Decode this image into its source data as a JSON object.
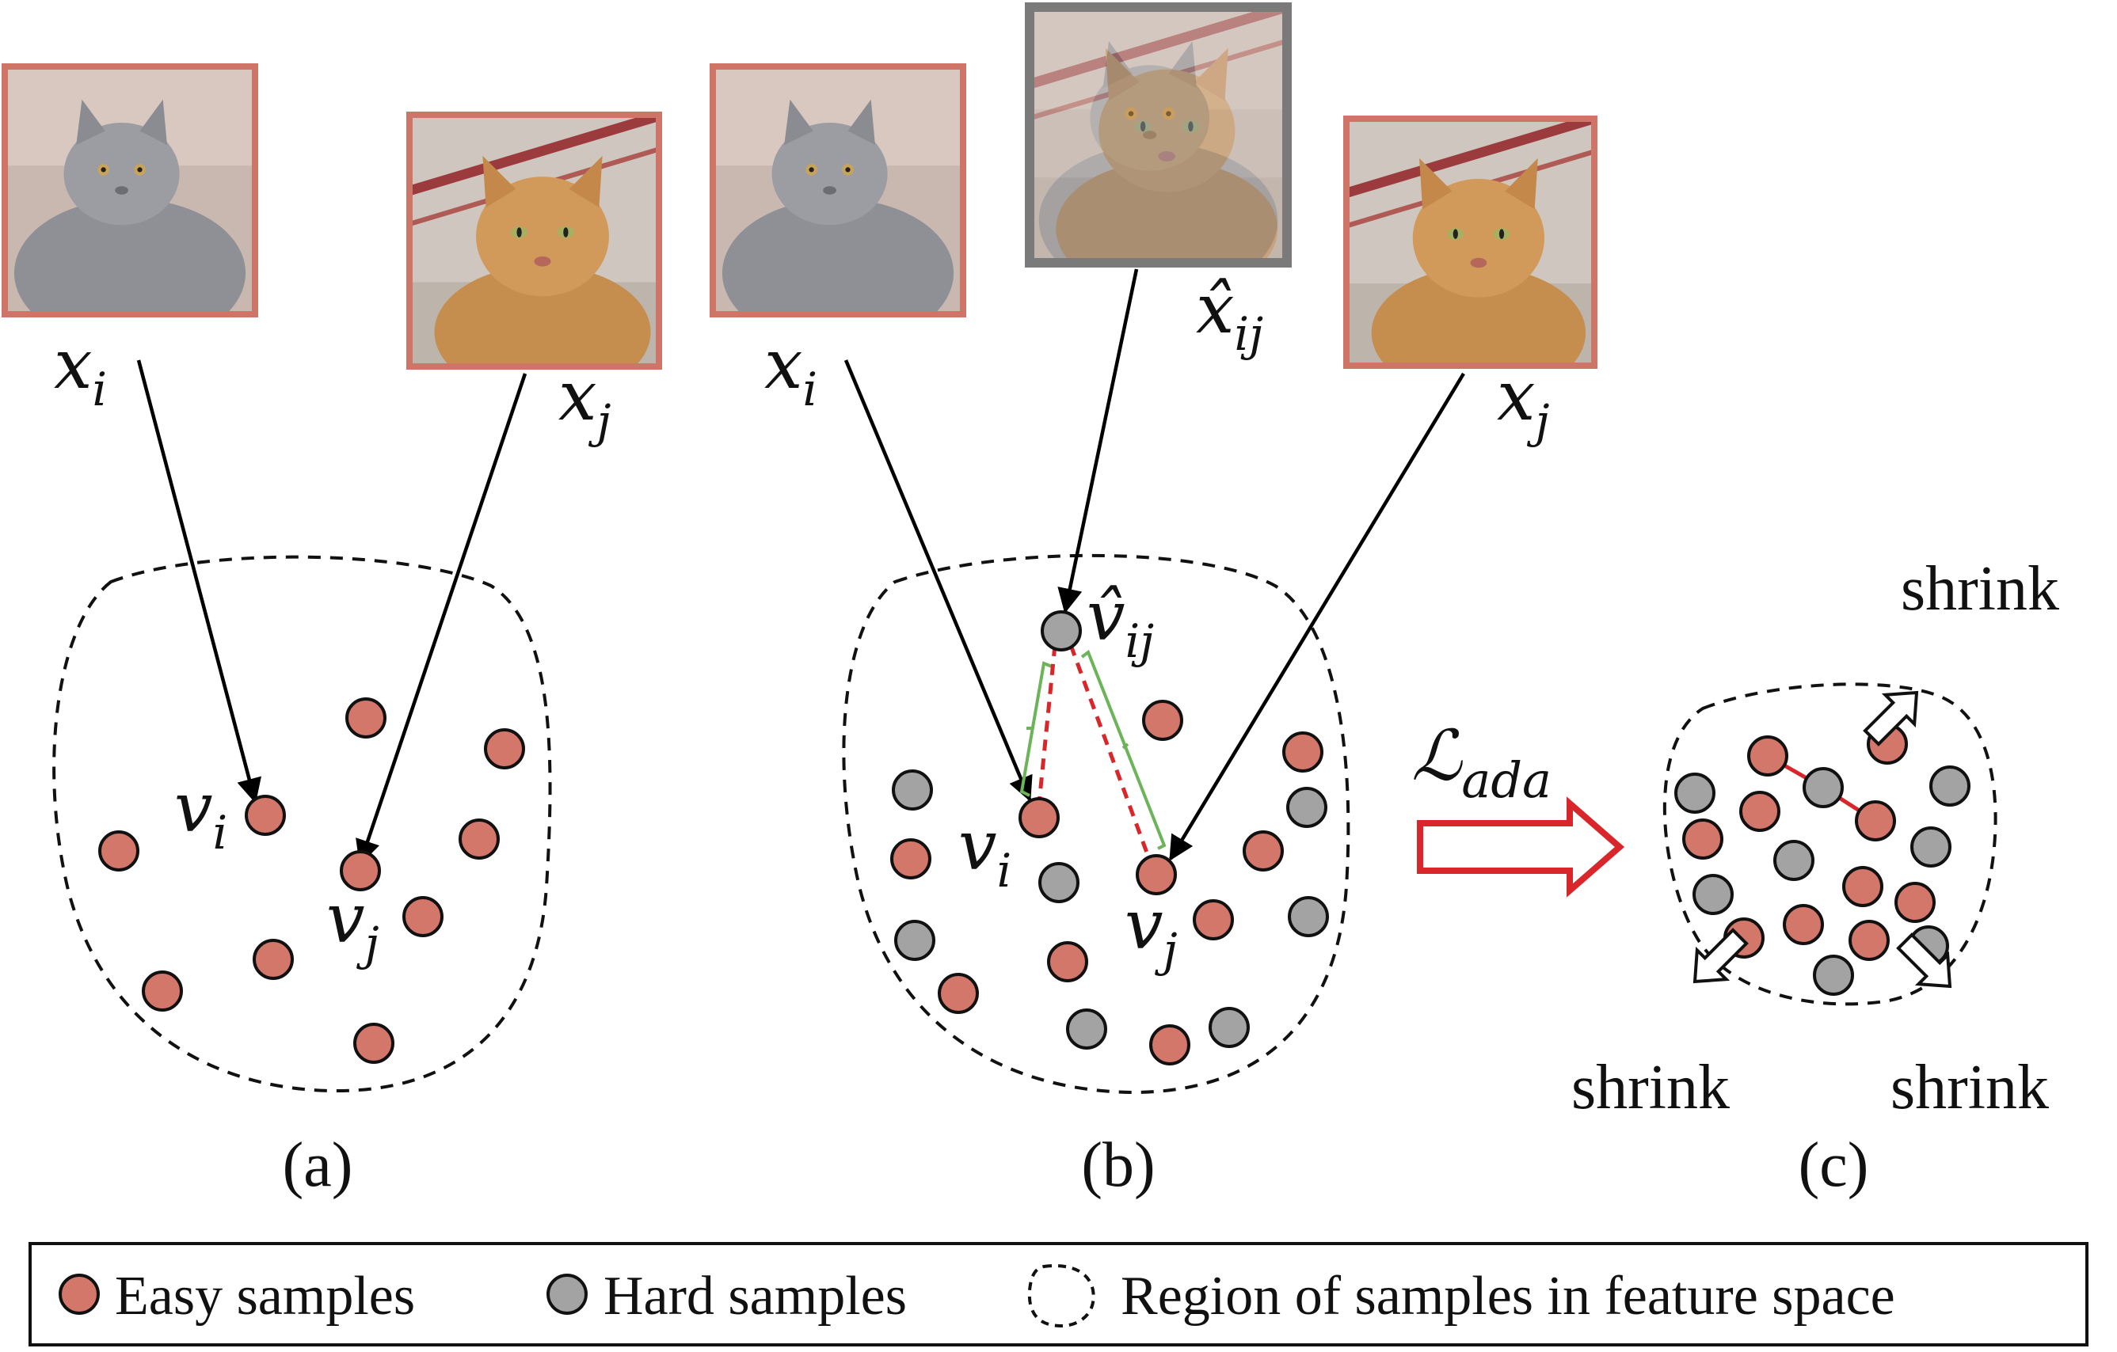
{
  "panels": {
    "a": {
      "caption": "(a)",
      "image_i_label": "x",
      "image_i_sub": "i",
      "image_j_label": "x",
      "image_j_sub": "j",
      "point_i_label": "v",
      "point_i_sub": "i",
      "point_j_label": "v",
      "point_j_sub": "j"
    },
    "b": {
      "caption": "(b)",
      "image_i_label": "x",
      "image_i_sub": "i",
      "image_mix_label": "x̂",
      "image_mix_sub": "ij",
      "image_j_label": "x",
      "image_j_sub": "j",
      "point_i_label": "v",
      "point_i_sub": "i",
      "point_mix_label": "v̂",
      "point_mix_sub": "ij",
      "point_j_label": "v",
      "point_j_sub": "j"
    },
    "c": {
      "caption": "(c)",
      "loss_label": "ℒ",
      "loss_sub": "ada",
      "shrink_top": "shrink",
      "shrink_left": "shrink",
      "shrink_right": "shrink"
    }
  },
  "legend": {
    "easy": "Easy samples",
    "hard": "Hard samples",
    "region": "Region of samples in feature space"
  },
  "colors": {
    "easy": "#d4776b",
    "hard": "#a3a3a3",
    "image_frame_easy": "#cf7568",
    "image_frame_mix": "#7a7a7a",
    "loss_arrow": "#d9262b",
    "distance_green": "#6cb35a",
    "distance_red": "#d9262b"
  }
}
